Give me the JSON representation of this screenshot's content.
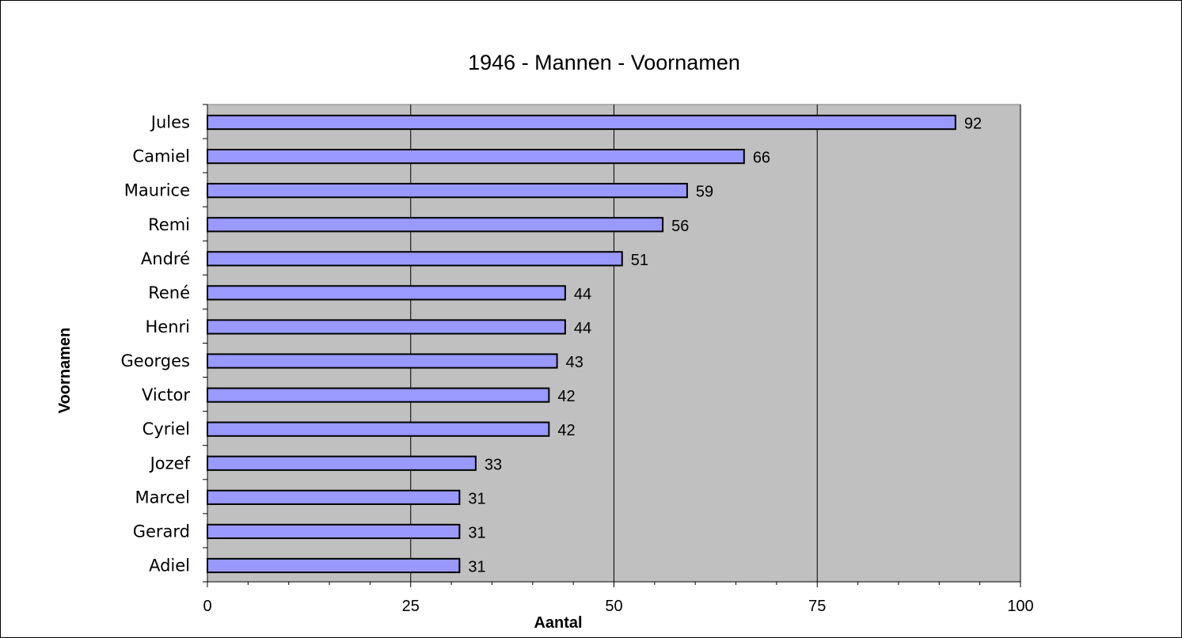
{
  "chart_data": {
    "type": "bar",
    "orientation": "horizontal",
    "title": "1946 - Mannen - Voornamen",
    "xlabel": "Aantal",
    "ylabel": "Voornamen",
    "categories": [
      "Jules",
      "Camiel",
      "Maurice",
      "Remi",
      "André",
      "René",
      "Henri",
      "Georges",
      "Victor",
      "Cyriel",
      "Jozef",
      "Marcel",
      "Gerard",
      "Adiel"
    ],
    "values": [
      92,
      66,
      59,
      56,
      51,
      44,
      44,
      43,
      42,
      42,
      33,
      31,
      31,
      31
    ],
    "xlim": [
      0,
      100
    ],
    "xticks": [
      "0",
      "25",
      "50",
      "75",
      "100"
    ],
    "grid": "vertical major lines",
    "legend": "none",
    "data_labels": true,
    "colors": {
      "bar_fill": "#9999FF",
      "bar_stroke": "#000000",
      "plot_background": "#C0C0C0",
      "gridline": "#000000"
    }
  }
}
